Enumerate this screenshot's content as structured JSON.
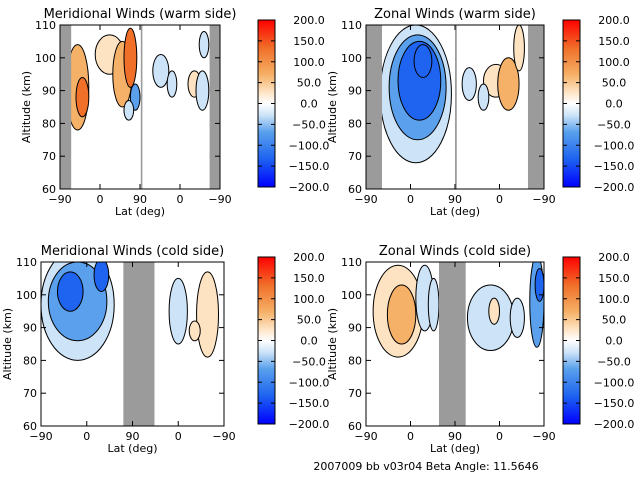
{
  "figure": {
    "footer": "2007009  bb  v03r04    Beta Angle: 11.5646",
    "colorscale": {
      "ticks": [
        "200.0",
        "150.0",
        "100.0",
        "50.0",
        "0.0",
        "−50.0",
        "−100.0",
        "−150.0",
        "−200.0"
      ],
      "range": [
        -200,
        200
      ],
      "colors": {
        "neg_extreme": "#0000ff",
        "neg_strong": "#1e64f0",
        "neg_mid": "#5aa0ec",
        "neg_weak": "#cde3f8",
        "zero": "#ffffff",
        "pos_weak": "#fde3c2",
        "pos_mid": "#f5b168",
        "pos_strong": "#f0702a",
        "pos_extreme": "#ff0000"
      }
    },
    "no_data_color": "#9b9b9b"
  },
  "chart_data": [
    {
      "type": "heatmap",
      "title": "Meridional Winds (warm side)",
      "xlabel": "Lat (deg)",
      "ylabel": "Altitude (km)",
      "x_ticks": [
        "−90",
        "0",
        "90",
        "0",
        "−90"
      ],
      "y_ticks": [
        "110",
        "100",
        "90",
        "80",
        "70",
        "60"
      ],
      "ylim": [
        60,
        110
      ],
      "no_data_bands": [
        {
          "from": 0.0,
          "to": 0.07
        },
        {
          "from": 0.935,
          "to": 1.0
        },
        {
          "from": 0.505,
          "to": 0.515
        }
      ],
      "features": [
        {
          "x": 0.11,
          "y": 91,
          "rx": 0.07,
          "ry": 13,
          "value": 60
        },
        {
          "x": 0.14,
          "y": 88,
          "rx": 0.04,
          "ry": 6,
          "value": 110
        },
        {
          "x": 0.31,
          "y": 101,
          "rx": 0.09,
          "ry": 6,
          "value": 40
        },
        {
          "x": 0.39,
          "y": 95,
          "rx": 0.06,
          "ry": 10,
          "value": 70
        },
        {
          "x": 0.44,
          "y": 100,
          "rx": 0.04,
          "ry": 9,
          "value": 110
        },
        {
          "x": 0.47,
          "y": 88,
          "rx": 0.03,
          "ry": 4,
          "value": -60
        },
        {
          "x": 0.43,
          "y": 84,
          "rx": 0.03,
          "ry": 3,
          "value": -40
        },
        {
          "x": 0.63,
          "y": 96,
          "rx": 0.05,
          "ry": 5,
          "value": -40
        },
        {
          "x": 0.7,
          "y": 92,
          "rx": 0.03,
          "ry": 4,
          "value": -40
        },
        {
          "x": 0.84,
          "y": 92,
          "rx": 0.04,
          "ry": 4,
          "value": 25
        },
        {
          "x": 0.89,
          "y": 90,
          "rx": 0.04,
          "ry": 6,
          "value": -30
        },
        {
          "x": 0.9,
          "y": 104,
          "rx": 0.03,
          "ry": 4,
          "value": -30
        }
      ]
    },
    {
      "type": "heatmap",
      "title": "Zonal Winds (warm side)",
      "xlabel": "Lat (deg)",
      "ylabel": "Altitude (km)",
      "x_ticks": [
        "−90",
        "0",
        "90",
        "0",
        "−90"
      ],
      "y_ticks": [
        "110",
        "100",
        "90",
        "80",
        "70",
        "60"
      ],
      "ylim": [
        60,
        110
      ],
      "no_data_bands": [
        {
          "from": 0.0,
          "to": 0.09
        },
        {
          "from": 0.91,
          "to": 1.0
        },
        {
          "from": 0.5,
          "to": 0.51
        }
      ],
      "features": [
        {
          "x": 0.28,
          "y": 89,
          "rx": 0.2,
          "ry": 21,
          "value": -40
        },
        {
          "x": 0.29,
          "y": 91,
          "rx": 0.16,
          "ry": 16,
          "value": -90
        },
        {
          "x": 0.3,
          "y": 93,
          "rx": 0.12,
          "ry": 12,
          "value": -140
        },
        {
          "x": 0.32,
          "y": 99,
          "rx": 0.05,
          "ry": 5,
          "value": -170
        },
        {
          "x": 0.73,
          "y": 93,
          "rx": 0.07,
          "ry": 5,
          "value": 50
        },
        {
          "x": 0.8,
          "y": 92,
          "rx": 0.06,
          "ry": 8,
          "value": 60
        },
        {
          "x": 0.86,
          "y": 103,
          "rx": 0.03,
          "ry": 7,
          "value": 50
        },
        {
          "x": 0.58,
          "y": 92,
          "rx": 0.04,
          "ry": 5,
          "value": -30
        },
        {
          "x": 0.66,
          "y": 88,
          "rx": 0.03,
          "ry": 4,
          "value": -30
        }
      ]
    },
    {
      "type": "heatmap",
      "title": "Meridional Winds (cold side)",
      "xlabel": "Lat (deg)",
      "ylabel": "Altitude (km)",
      "x_ticks": [
        "−90",
        "0",
        "90",
        "0",
        "−90"
      ],
      "y_ticks": [
        "110",
        "100",
        "90",
        "80",
        "70",
        "60"
      ],
      "ylim": [
        60,
        110
      ],
      "no_data_bands": [
        {
          "from": 0.45,
          "to": 0.62
        }
      ],
      "features": [
        {
          "x": 0.2,
          "y": 97,
          "rx": 0.2,
          "ry": 17,
          "value": -40
        },
        {
          "x": 0.2,
          "y": 98,
          "rx": 0.16,
          "ry": 12,
          "value": -80
        },
        {
          "x": 0.16,
          "y": 101,
          "rx": 0.07,
          "ry": 6,
          "value": -130
        },
        {
          "x": 0.33,
          "y": 106,
          "rx": 0.04,
          "ry": 5,
          "value": -120
        },
        {
          "x": 0.75,
          "y": 95,
          "rx": 0.05,
          "ry": 10,
          "value": -30
        },
        {
          "x": 0.91,
          "y": 94,
          "rx": 0.06,
          "ry": 13,
          "value": 45
        },
        {
          "x": 0.84,
          "y": 89,
          "rx": 0.03,
          "ry": 3,
          "value": 20
        }
      ]
    },
    {
      "type": "heatmap",
      "title": "Zonal Winds (cold side)",
      "xlabel": "Lat (deg)",
      "ylabel": "Altitude (km)",
      "x_ticks": [
        "−90",
        "0",
        "90",
        "0",
        "−90"
      ],
      "y_ticks": [
        "110",
        "100",
        "90",
        "80",
        "70",
        "60"
      ],
      "ylim": [
        60,
        110
      ],
      "no_data_bands": [
        {
          "from": 0.41,
          "to": 0.56
        }
      ],
      "features": [
        {
          "x": 0.18,
          "y": 95,
          "rx": 0.14,
          "ry": 14,
          "value": 45
        },
        {
          "x": 0.2,
          "y": 94,
          "rx": 0.08,
          "ry": 9,
          "value": 75
        },
        {
          "x": 0.33,
          "y": 99,
          "rx": 0.05,
          "ry": 10,
          "value": -40
        },
        {
          "x": 0.38,
          "y": 97,
          "rx": 0.03,
          "ry": 8,
          "value": -30
        },
        {
          "x": 0.7,
          "y": 93,
          "rx": 0.13,
          "ry": 10,
          "value": -35
        },
        {
          "x": 0.85,
          "y": 93,
          "rx": 0.04,
          "ry": 6,
          "value": -45
        },
        {
          "x": 0.96,
          "y": 98,
          "rx": 0.04,
          "ry": 14,
          "value": -100
        },
        {
          "x": 0.975,
          "y": 103,
          "rx": 0.025,
          "ry": 5,
          "value": -150
        },
        {
          "x": 0.72,
          "y": 95,
          "rx": 0.03,
          "ry": 4,
          "value": 25
        }
      ]
    }
  ]
}
